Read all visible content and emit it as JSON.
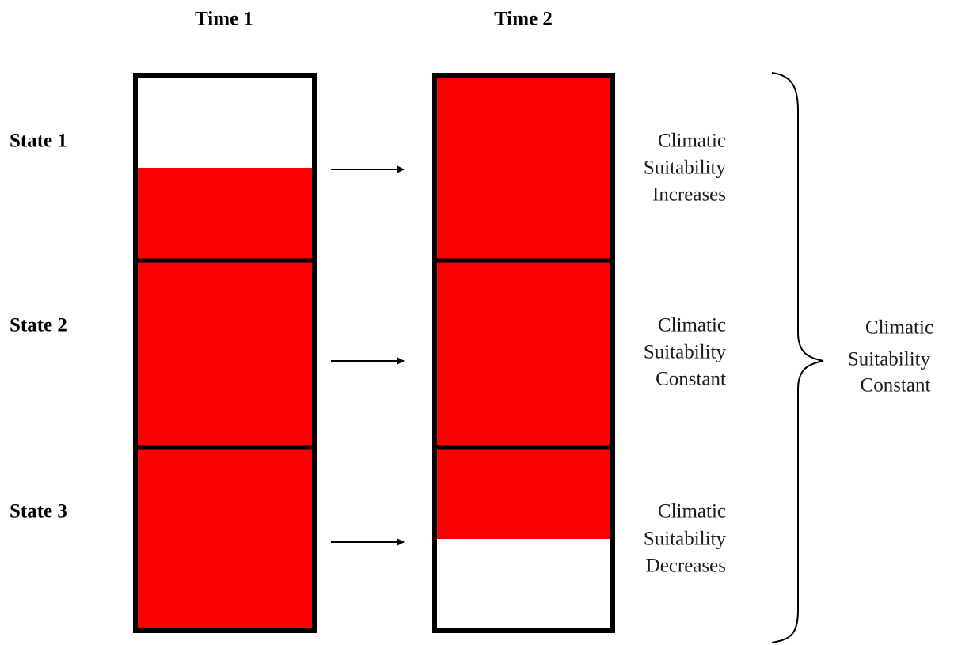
{
  "columns": [
    "Time 1",
    "Time 2"
  ],
  "rows": [
    "State 1",
    "State 2",
    "State 3"
  ],
  "descriptions": [
    [
      "Climatic",
      "Suitability",
      "Increases"
    ],
    [
      "Climatic",
      "Suitability",
      "Constant"
    ],
    [
      "Climatic",
      "Suitability",
      "Decreases"
    ]
  ],
  "brace_label": [
    "Climatic",
    "Suitability",
    "Constant"
  ]
}
